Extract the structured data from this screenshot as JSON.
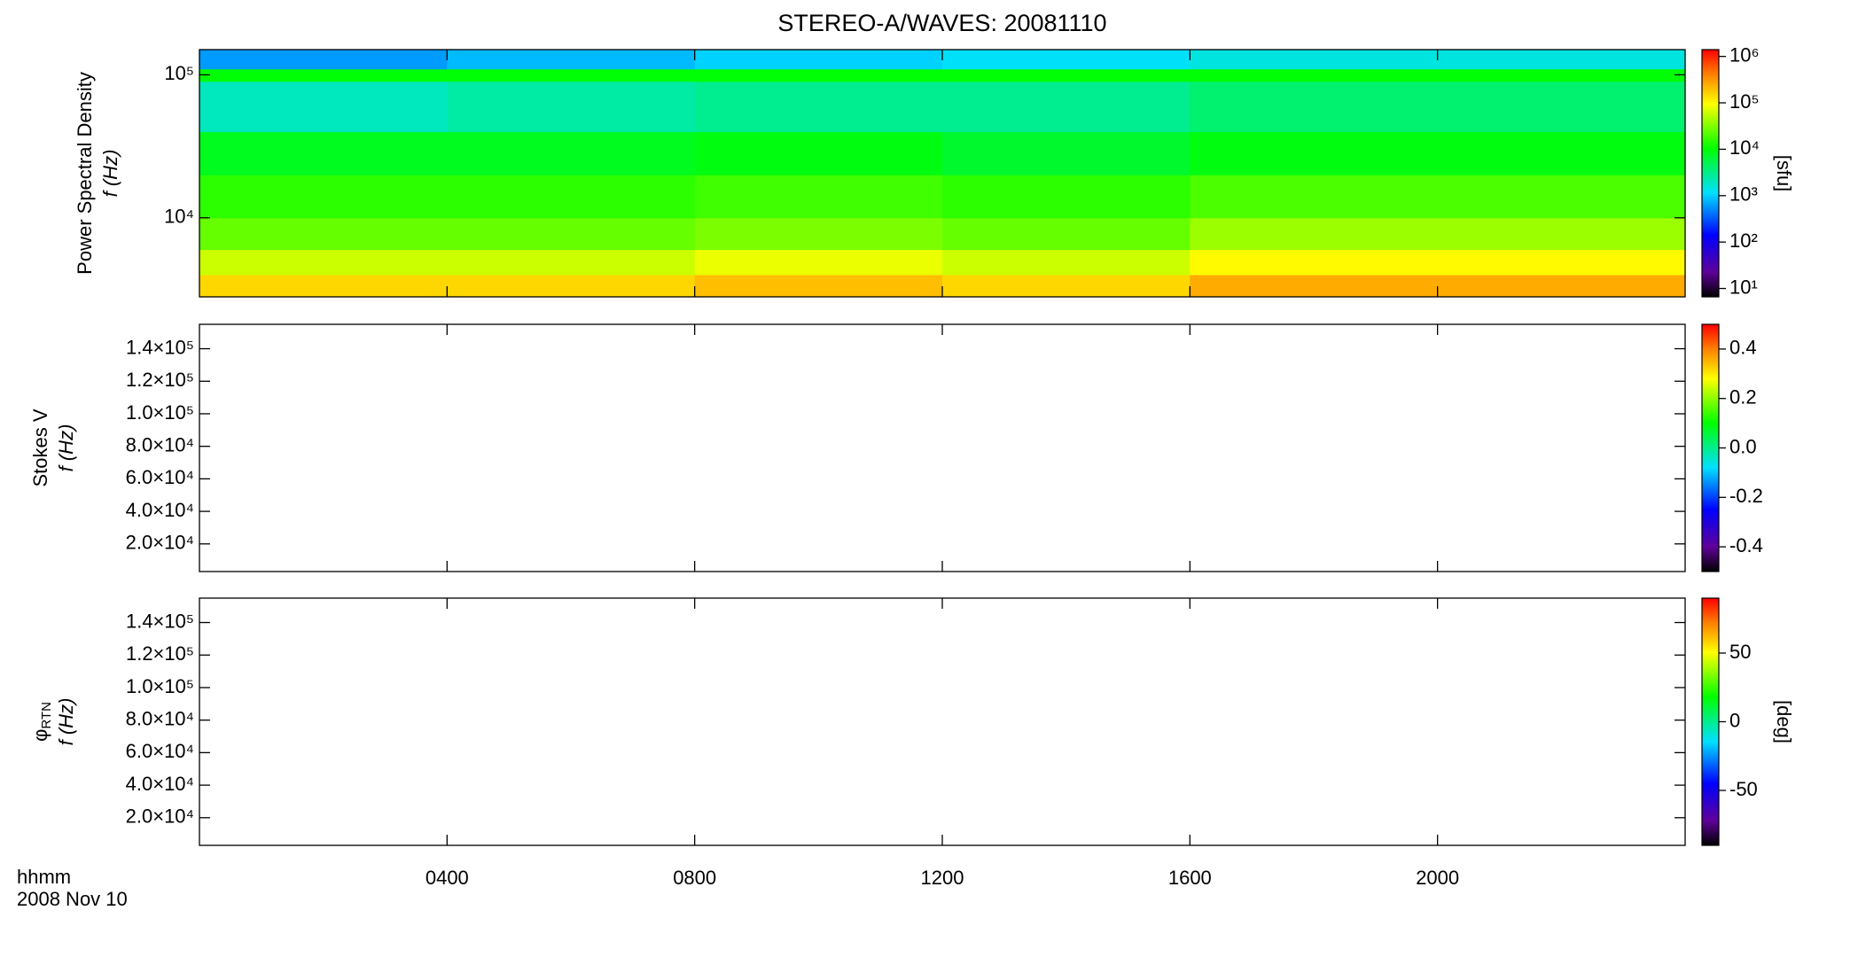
{
  "chart_data": [
    {
      "type": "heatmap",
      "title": "STEREO-A/WAVES: 20081110",
      "ylabel": [
        "Power Spectral Density",
        "f (Hz)"
      ],
      "xlim": [
        0,
        24
      ],
      "xticks": [
        4,
        8,
        12,
        16,
        20
      ],
      "ylim": [
        2800,
        150000
      ],
      "ylog": true,
      "yticks": [
        {
          "value": 10000,
          "label": "10⁴"
        },
        {
          "value": 100000,
          "label": "10⁵"
        }
      ],
      "x_edges": [
        0,
        4,
        8,
        12,
        16,
        20,
        24
      ],
      "y_edges": [
        2800,
        4000,
        6000,
        10000,
        20000,
        40000,
        90000,
        110000,
        150000
      ],
      "values": [
        [
          150000,
          150000,
          200000,
          150000,
          250000,
          250000
        ],
        [
          60000,
          60000,
          80000,
          60000,
          100000,
          100000
        ],
        [
          25000,
          25000,
          30000,
          25000,
          40000,
          40000
        ],
        [
          15000,
          15000,
          18000,
          15000,
          20000,
          20000
        ],
        [
          8000,
          8000,
          9000,
          7000,
          9000,
          9000
        ],
        [
          2000,
          2500,
          3000,
          3000,
          4000,
          4000
        ],
        [
          10000,
          10000,
          10000,
          10000,
          10000,
          10000
        ],
        [
          600,
          800,
          1000,
          1200,
          1500,
          1500
        ]
      ],
      "colorbar": {
        "zlim": [
          6.6,
          1400000
        ],
        "zlog": true,
        "label": "[sfu]",
        "zticks": [
          {
            "value": 10,
            "label": "10¹"
          },
          {
            "value": 100,
            "label": "10²"
          },
          {
            "value": 1000,
            "label": "10³"
          },
          {
            "value": 10000,
            "label": "10⁴"
          },
          {
            "value": 100000,
            "label": "10⁵"
          },
          {
            "value": 1000000,
            "label": "10⁶"
          }
        ]
      }
    },
    {
      "type": "heatmap",
      "ylabel": [
        "Stokes V",
        "f (Hz)"
      ],
      "xlim": [
        0,
        24
      ],
      "xticks": [
        4,
        8,
        12,
        16,
        20
      ],
      "ylim": [
        3000,
        155000
      ],
      "yticks": [
        {
          "value": 20000,
          "label": "2.0×10⁴"
        },
        {
          "value": 40000,
          "label": "4.0×10⁴"
        },
        {
          "value": 60000,
          "label": "6.0×10⁴"
        },
        {
          "value": 80000,
          "label": "8.0×10⁴"
        },
        {
          "value": 100000,
          "label": "1.0×10⁵"
        },
        {
          "value": 120000,
          "label": "1.2×10⁵"
        },
        {
          "value": 140000,
          "label": "1.4×10⁵"
        }
      ],
      "colorbar": {
        "zlim": [
          -0.5,
          0.5
        ],
        "zticks": [
          -0.4,
          -0.2,
          {
            "value": 0,
            "label": "0.0"
          },
          0.2,
          0.4
        ]
      }
    },
    {
      "type": "heatmap",
      "ylabel": [
        "φ",
        "f (Hz)"
      ],
      "ylabel_subscript": "RTN",
      "xlabel": [
        "hhmm",
        "2008 Nov 10"
      ],
      "xlim": [
        0,
        24
      ],
      "xticks": [
        {
          "value": 4,
          "label": "0400"
        },
        {
          "value": 8,
          "label": "0800"
        },
        {
          "value": 12,
          "label": "1200"
        },
        {
          "value": 16,
          "label": "1600"
        },
        {
          "value": 20,
          "label": "2000"
        }
      ],
      "ylim": [
        3000,
        155000
      ],
      "yticks": [
        {
          "value": 20000,
          "label": "2.0×10⁴"
        },
        {
          "value": 40000,
          "label": "4.0×10⁴"
        },
        {
          "value": 60000,
          "label": "6.0×10⁴"
        },
        {
          "value": 80000,
          "label": "8.0×10⁴"
        },
        {
          "value": 100000,
          "label": "1.0×10⁵"
        },
        {
          "value": 120000,
          "label": "1.2×10⁵"
        },
        {
          "value": 140000,
          "label": "1.4×10⁵"
        }
      ],
      "colorbar": {
        "zlim": [
          -90,
          90
        ],
        "label": "[deg]",
        "zticks": [
          -50,
          0,
          50
        ]
      }
    }
  ]
}
